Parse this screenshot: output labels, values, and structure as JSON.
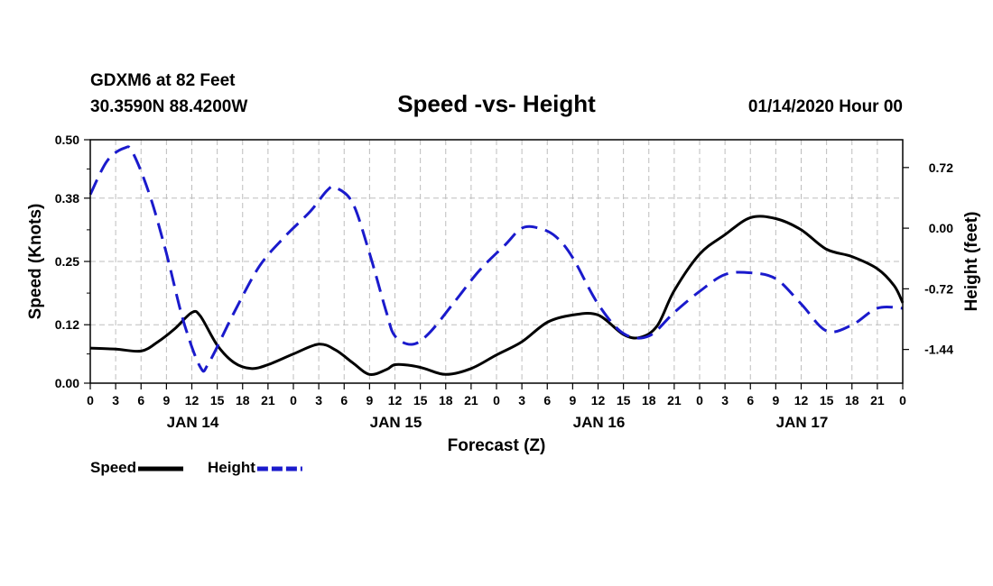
{
  "station": {
    "name": "GDXM6 at 82 Feet",
    "coords": "30.3590N 88.4200W"
  },
  "issued": "01/14/2020 Hour 00",
  "chart_data": {
    "type": "line",
    "title": "Speed -vs- Height",
    "xlabel": "Forecast (Z)",
    "ylabel_left": "Speed (Knots)",
    "ylabel_right": "Height (feet)",
    "xlim_hours": [
      0,
      96
    ],
    "ylim_left": [
      0,
      0.5
    ],
    "ylim_right": [
      -1.84,
      1.05
    ],
    "grid": true,
    "x_tick_hours": [
      0,
      3,
      6,
      9,
      12,
      15,
      18,
      21,
      24,
      27,
      30,
      33,
      36,
      39,
      42,
      45,
      48,
      51,
      54,
      57,
      60,
      63,
      66,
      69,
      72,
      75,
      78,
      81,
      84,
      87,
      90,
      93,
      96
    ],
    "x_tick_labels": [
      "0",
      "3",
      "6",
      "9",
      "12",
      "15",
      "18",
      "21",
      "0",
      "3",
      "6",
      "9",
      "12",
      "15",
      "18",
      "21",
      "0",
      "3",
      "6",
      "9",
      "12",
      "15",
      "18",
      "21",
      "0",
      "3",
      "6",
      "9",
      "12",
      "15",
      "18",
      "21",
      "0"
    ],
    "date_labels": [
      {
        "label": "JAN 14",
        "hour": 12
      },
      {
        "label": "JAN 15",
        "hour": 36
      },
      {
        "label": "JAN 16",
        "hour": 60
      },
      {
        "label": "JAN 17",
        "hour": 84
      }
    ],
    "y_left_ticks": [
      0.0,
      0.12,
      0.25,
      0.38,
      0.5
    ],
    "y_left_tick_labels": [
      "0.00",
      "0.12",
      "0.25",
      "0.38",
      "0.50"
    ],
    "y_right_ticks": [
      0.72,
      0.0,
      -0.72,
      -1.44
    ],
    "y_right_tick_labels": [
      "0.72",
      "0.00",
      "-0.72",
      "-1.44"
    ],
    "legend": [
      {
        "label": "Speed",
        "color": "#000000",
        "dash": "solid"
      },
      {
        "label": "Height",
        "color": "#1a1acc",
        "dash": "dashed"
      }
    ],
    "series": [
      {
        "name": "Speed",
        "axis": "left",
        "color": "#000000",
        "hours": [
          0,
          3,
          6,
          8,
          10,
          12,
          13,
          15,
          17,
          19,
          21,
          24,
          27,
          29,
          31,
          33,
          35,
          36,
          38,
          39.5,
          42,
          45,
          48,
          51,
          54,
          57,
          60,
          63,
          65,
          67,
          69,
          72,
          75,
          78,
          81,
          84,
          87,
          90,
          93,
          95,
          96
        ],
        "values": [
          0.072,
          0.07,
          0.066,
          0.085,
          0.112,
          0.145,
          0.138,
          0.078,
          0.042,
          0.03,
          0.038,
          0.06,
          0.08,
          0.068,
          0.042,
          0.018,
          0.028,
          0.038,
          0.036,
          0.03,
          0.018,
          0.03,
          0.058,
          0.085,
          0.125,
          0.14,
          0.14,
          0.1,
          0.094,
          0.118,
          0.19,
          0.265,
          0.305,
          0.34,
          0.338,
          0.315,
          0.275,
          0.26,
          0.235,
          0.2,
          0.165
        ]
      },
      {
        "name": "Height",
        "axis": "right",
        "color": "#1a1acc",
        "hours": [
          0,
          2,
          4,
          5,
          7,
          9,
          11,
          13,
          14,
          17,
          20,
          23,
          26,
          28,
          29,
          31,
          33,
          35,
          36,
          38,
          40,
          43,
          46,
          49,
          51,
          53,
          55,
          57,
          60,
          63,
          66,
          69,
          72,
          75,
          78,
          81,
          84,
          87,
          90,
          93,
          96
        ],
        "values": [
          0.4,
          0.8,
          0.95,
          0.9,
          0.4,
          -0.3,
          -1.1,
          -1.65,
          -1.6,
          -1.0,
          -0.45,
          -0.1,
          0.2,
          0.45,
          0.48,
          0.3,
          -0.3,
          -1.0,
          -1.28,
          -1.38,
          -1.25,
          -0.88,
          -0.5,
          -0.2,
          0.0,
          0.0,
          -0.1,
          -0.35,
          -0.9,
          -1.25,
          -1.28,
          -1.0,
          -0.75,
          -0.55,
          -0.53,
          -0.6,
          -0.9,
          -1.22,
          -1.15,
          -0.95,
          -0.95
        ]
      }
    ]
  }
}
